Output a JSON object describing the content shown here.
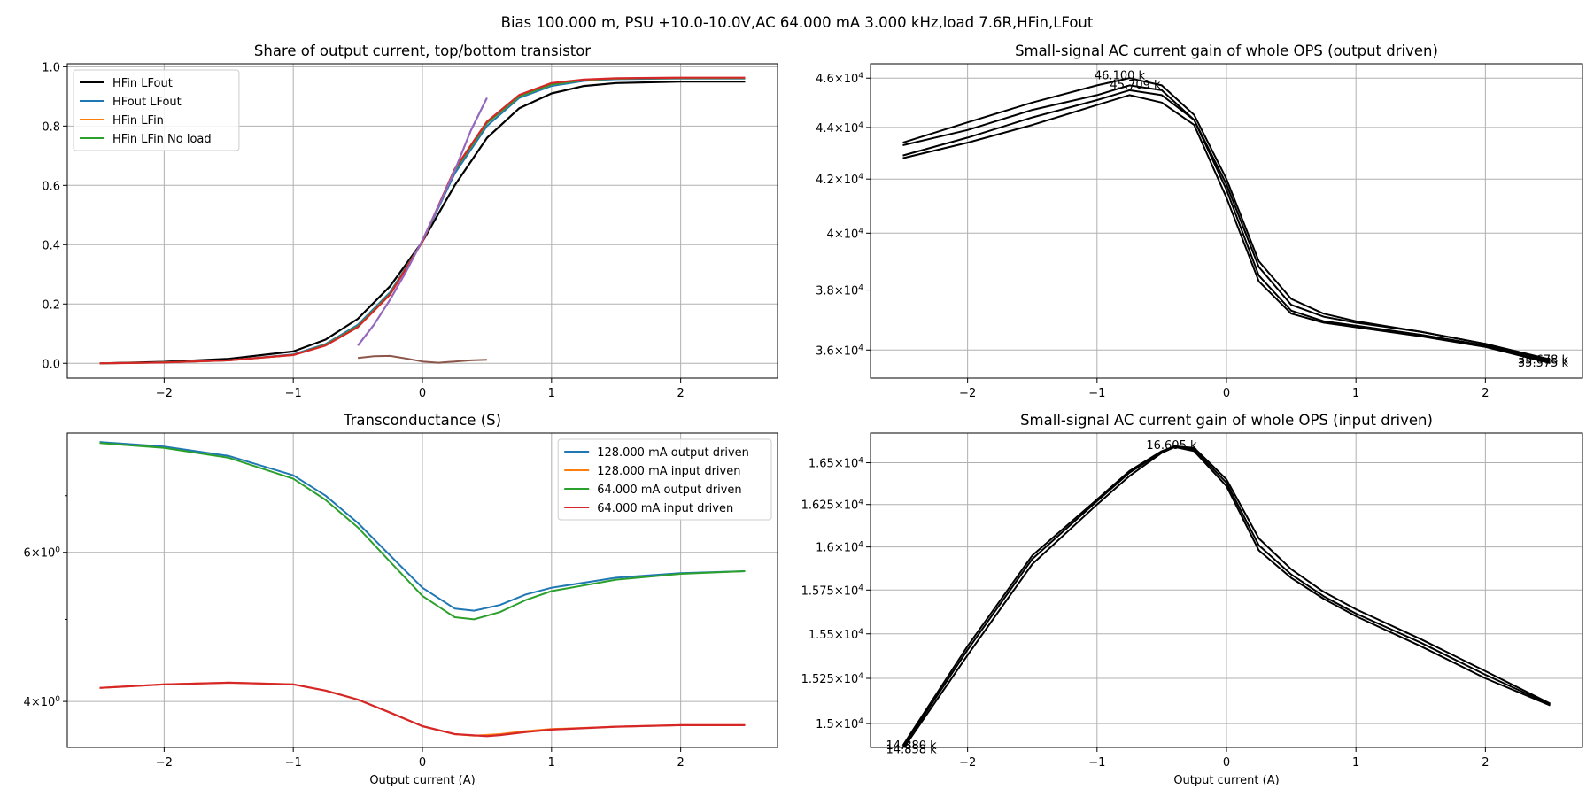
{
  "figure": {
    "suptitle": "Bias 100.000 m, PSU +10.0-10.0V,AC 64.000 mA 3.000 kHz,load 7.6R,HFin,LFout"
  },
  "colors": {
    "black": "#000000",
    "blue": "#1f77b4",
    "orange": "#ff7f0e",
    "green": "#2ca02c",
    "red": "#d62728",
    "purple": "#9467bd",
    "brown": "#8c564b",
    "grid": "#b0b0b0"
  },
  "chart_data": [
    {
      "id": "share",
      "type": "line",
      "title": "Share of output current, top/bottom transistor",
      "xlabel": "",
      "ylabel": "",
      "xlim": [
        -2.75,
        2.75
      ],
      "ylim": [
        -0.05,
        1.01
      ],
      "xticks": [
        -2,
        -1,
        0,
        1,
        2
      ],
      "xticklabels": [
        "−2",
        "−1",
        "0",
        "1",
        "2"
      ],
      "yticks": [
        0.0,
        0.2,
        0.4,
        0.6,
        0.8,
        1.0
      ],
      "yticklabels": [
        "0.0",
        "0.2",
        "0.4",
        "0.6",
        "0.8",
        "1.0"
      ],
      "grid": true,
      "legend": {
        "placement": "upper-left",
        "entries": [
          {
            "label": "HFin LFout",
            "color": "#000000"
          },
          {
            "label": "HFout LFout",
            "color": "#1f77b4"
          },
          {
            "label": "HFin LFin",
            "color": "#ff7f0e"
          },
          {
            "label": "HFin LFin No load",
            "color": "#2ca02c"
          }
        ]
      },
      "series": [
        {
          "name": "HFin LFout",
          "color": "#000000",
          "width": 2.2,
          "x": [
            -2.5,
            -2.0,
            -1.5,
            -1.0,
            -0.75,
            -0.5,
            -0.25,
            0.0,
            0.25,
            0.5,
            0.75,
            1.0,
            1.25,
            1.5,
            2.0,
            2.5
          ],
          "y": [
            0.0,
            0.005,
            0.015,
            0.04,
            0.08,
            0.15,
            0.26,
            0.41,
            0.6,
            0.76,
            0.86,
            0.91,
            0.935,
            0.945,
            0.95,
            0.95
          ]
        },
        {
          "name": "HFout LFout",
          "color": "#1f77b4",
          "width": 2.0,
          "x": [
            -2.5,
            -2.0,
            -1.5,
            -1.0,
            -0.75,
            -0.5,
            -0.25,
            0.0,
            0.25,
            0.5,
            0.75,
            1.0,
            1.25,
            1.5,
            2.0,
            2.5
          ],
          "y": [
            0.0,
            0.003,
            0.01,
            0.03,
            0.065,
            0.13,
            0.24,
            0.41,
            0.64,
            0.8,
            0.895,
            0.935,
            0.952,
            0.958,
            0.96,
            0.96
          ]
        },
        {
          "name": "HFin LFin",
          "color": "#ff7f0e",
          "width": 2.0,
          "x": [
            -2.5,
            -2.0,
            -1.5,
            -1.0,
            -0.75,
            -0.5,
            -0.25,
            0.0,
            0.25,
            0.5,
            0.75,
            1.0,
            1.25,
            1.5,
            2.0,
            2.5
          ],
          "y": [
            0.0,
            0.003,
            0.01,
            0.028,
            0.062,
            0.125,
            0.235,
            0.41,
            0.65,
            0.81,
            0.9,
            0.94,
            0.955,
            0.96,
            0.962,
            0.962
          ]
        },
        {
          "name": "HFin LFin No load",
          "color": "#2ca02c",
          "width": 2.0,
          "x": [
            -2.5,
            -2.0,
            -1.5,
            -1.0,
            -0.75,
            -0.5,
            -0.25,
            0.0,
            0.25,
            0.5,
            0.75,
            1.0,
            1.25,
            1.5,
            2.0,
            2.5
          ],
          "y": [
            0.0,
            0.003,
            0.01,
            0.028,
            0.062,
            0.125,
            0.235,
            0.41,
            0.65,
            0.81,
            0.9,
            0.94,
            0.955,
            0.96,
            0.962,
            0.962
          ]
        },
        {
          "name": "",
          "color": "#d62728",
          "width": 2.2,
          "x": [
            -2.5,
            -2.0,
            -1.5,
            -1.0,
            -0.75,
            -0.5,
            -0.25,
            0.0,
            0.25,
            0.5,
            0.75,
            1.0,
            1.25,
            1.5,
            2.0,
            2.5
          ],
          "y": [
            0.0,
            0.003,
            0.01,
            0.028,
            0.06,
            0.122,
            0.232,
            0.41,
            0.655,
            0.815,
            0.905,
            0.945,
            0.957,
            0.961,
            0.963,
            0.963
          ]
        },
        {
          "name": "",
          "color": "#9467bd",
          "width": 2.2,
          "x": [
            -0.5,
            -0.375,
            -0.25,
            -0.125,
            0.0,
            0.125,
            0.25,
            0.375,
            0.5
          ],
          "y": [
            0.06,
            0.13,
            0.215,
            0.31,
            0.415,
            0.53,
            0.65,
            0.785,
            0.895
          ]
        },
        {
          "name": "",
          "color": "#8c564b",
          "width": 2.0,
          "x": [
            -0.5,
            -0.375,
            -0.25,
            -0.125,
            0.0,
            0.125,
            0.25,
            0.375,
            0.5
          ],
          "y": [
            0.018,
            0.024,
            0.025,
            0.016,
            0.006,
            0.002,
            0.006,
            0.01,
            0.012
          ]
        }
      ]
    },
    {
      "id": "gain_out",
      "type": "line",
      "title": "Small-signal AC current gain of whole OPS (output driven)",
      "xlabel": "",
      "ylabel": "",
      "scale": "log",
      "xlim": [
        -2.75,
        2.75
      ],
      "ylim": [
        35100,
        46600
      ],
      "xticks": [
        -2,
        -1,
        0,
        1,
        2
      ],
      "xticklabels": [
        "−2",
        "−1",
        "0",
        "1",
        "2"
      ],
      "yticks": [
        36000,
        38000,
        40000,
        42000,
        44000,
        46000
      ],
      "yticklabels": [
        {
          "m": "3.6",
          "e": "4"
        },
        {
          "m": "3.8",
          "e": "4"
        },
        {
          "m": "4",
          "e": "4"
        },
        {
          "m": "4.2",
          "e": "4"
        },
        {
          "m": "4.4",
          "e": "4"
        },
        {
          "m": "4.6",
          "e": "4"
        }
      ],
      "grid": true,
      "annotations": [
        {
          "text": "46.100 k",
          "x": -1.02,
          "y": 46100
        },
        {
          "text": "45.709 k",
          "x": -0.9,
          "y": 45709
        },
        {
          "text": "35.678 k",
          "x": 2.25,
          "y": 35678
        },
        {
          "text": "35.575 k",
          "x": 2.25,
          "y": 35575
        }
      ],
      "series": [
        {
          "name": "",
          "color": "#000000",
          "width": 2.0,
          "x": [
            -2.5,
            -2.0,
            -1.5,
            -1.0,
            -0.75,
            -0.5,
            -0.25,
            0.0,
            0.25,
            0.5,
            0.75,
            1.0,
            1.5,
            2.0,
            2.5
          ],
          "y": [
            43400,
            44200,
            45000,
            45700,
            46000,
            45700,
            44500,
            42000,
            39000,
            37700,
            37200,
            36950,
            36600,
            36200,
            35700
          ]
        },
        {
          "name": "",
          "color": "#000000",
          "width": 2.0,
          "x": [
            -2.5,
            -2.0,
            -1.5,
            -1.0,
            -0.75,
            -0.5,
            -0.25,
            0.0,
            0.25,
            0.5,
            0.75,
            1.0,
            1.5,
            2.0,
            2.5
          ],
          "y": [
            43300,
            43900,
            44700,
            45300,
            45700,
            45500,
            44300,
            41800,
            38800,
            37500,
            37100,
            36900,
            36600,
            36200,
            35650
          ]
        },
        {
          "name": "",
          "color": "#000000",
          "width": 2.0,
          "x": [
            -2.5,
            -2.0,
            -1.5,
            -1.0,
            -0.75,
            -0.5,
            -0.25,
            0.0,
            0.25,
            0.5,
            0.75,
            1.0,
            1.5,
            2.0,
            2.5
          ],
          "y": [
            42900,
            43600,
            44400,
            45100,
            45500,
            45300,
            44300,
            41600,
            38500,
            37300,
            36950,
            36800,
            36500,
            36150,
            35600
          ]
        },
        {
          "name": "",
          "color": "#000000",
          "width": 2.0,
          "x": [
            -2.5,
            -2.0,
            -1.5,
            -1.0,
            -0.75,
            -0.5,
            -0.25,
            0.0,
            0.25,
            0.5,
            0.75,
            1.0,
            1.5,
            2.0,
            2.5
          ],
          "y": [
            42800,
            43400,
            44100,
            44900,
            45300,
            45000,
            44100,
            41300,
            38300,
            37200,
            36900,
            36750,
            36450,
            36100,
            35580
          ]
        }
      ]
    },
    {
      "id": "transconductance",
      "type": "line",
      "title": "Transconductance (S)",
      "xlabel": "Output current (A)",
      "ylabel": "",
      "scale": "log",
      "xlim": [
        -2.75,
        2.75
      ],
      "ylim": [
        3.53,
        8.3
      ],
      "xticks": [
        -2,
        -1,
        0,
        1,
        2
      ],
      "xticklabels": [
        "−2",
        "−1",
        "0",
        "1",
        "2"
      ],
      "yticks": [
        4,
        6
      ],
      "yticklabels": [
        {
          "m": "4",
          "e": "0"
        },
        {
          "m": "6",
          "e": "0"
        }
      ],
      "yminorticks": [
        5,
        7
      ],
      "grid": true,
      "legend": {
        "placement": "upper-right",
        "entries": [
          {
            "label": "128.000 mA output driven",
            "color": "#1f77b4"
          },
          {
            "label": "128.000 mA input driven",
            "color": "#ff7f0e"
          },
          {
            "label": "64.000 mA output driven",
            "color": "#2ca02c"
          },
          {
            "label": "64.000 mA input driven",
            "color": "#d62728"
          }
        ]
      },
      "series": [
        {
          "name": "128.000 mA output driven",
          "color": "#1f77b4",
          "width": 2.0,
          "x": [
            -2.5,
            -2.0,
            -1.5,
            -1.0,
            -0.75,
            -0.5,
            -0.25,
            0.0,
            0.25,
            0.4,
            0.6,
            0.8,
            1.0,
            1.5,
            2.0,
            2.5
          ],
          "y": [
            8.1,
            8.0,
            7.8,
            7.4,
            7.0,
            6.5,
            5.95,
            5.45,
            5.15,
            5.12,
            5.2,
            5.35,
            5.45,
            5.6,
            5.67,
            5.7
          ]
        },
        {
          "name": "128.000 mA input driven",
          "color": "#ff7f0e",
          "width": 2.0,
          "x": [
            -2.5,
            -2.0,
            -1.5,
            -1.0,
            -0.75,
            -0.5,
            -0.25,
            0.0,
            0.25,
            0.4,
            0.6,
            0.8,
            1.0,
            1.5,
            2.0,
            2.5
          ],
          "y": [
            4.15,
            4.19,
            4.21,
            4.19,
            4.12,
            4.02,
            3.88,
            3.74,
            3.66,
            3.645,
            3.66,
            3.69,
            3.71,
            3.735,
            3.75,
            3.75
          ]
        },
        {
          "name": "64.000 mA output driven",
          "color": "#2ca02c",
          "width": 2.0,
          "x": [
            -2.5,
            -2.0,
            -1.5,
            -1.0,
            -0.75,
            -0.5,
            -0.25,
            0.0,
            0.25,
            0.4,
            0.6,
            0.8,
            1.0,
            1.5,
            2.0,
            2.5
          ],
          "y": [
            8.08,
            7.97,
            7.76,
            7.33,
            6.92,
            6.42,
            5.85,
            5.33,
            5.03,
            5.0,
            5.1,
            5.27,
            5.4,
            5.57,
            5.66,
            5.7
          ]
        },
        {
          "name": "64.000 mA input driven",
          "color": "#d62728",
          "width": 2.2,
          "x": [
            -2.5,
            -2.0,
            -1.5,
            -1.0,
            -0.75,
            -0.5,
            -0.25,
            0.0,
            0.25,
            0.5,
            0.6,
            0.8,
            1.0,
            1.5,
            2.0,
            2.5
          ],
          "y": [
            4.15,
            4.19,
            4.21,
            4.19,
            4.12,
            4.02,
            3.88,
            3.74,
            3.66,
            3.64,
            3.65,
            3.68,
            3.705,
            3.735,
            3.75,
            3.75
          ]
        }
      ]
    },
    {
      "id": "gain_in",
      "type": "line",
      "title": "Small-signal AC current gain of whole OPS (input driven)",
      "xlabel": "Output current (A)",
      "ylabel": "",
      "scale": "log",
      "xlim": [
        -2.75,
        2.75
      ],
      "ylim": [
        14870,
        16680
      ],
      "xticks": [
        -2,
        -1,
        0,
        1,
        2
      ],
      "xticklabels": [
        "−2",
        "−1",
        "0",
        "1",
        "2"
      ],
      "yticks": [
        15000,
        15250,
        15500,
        15750,
        16000,
        16250,
        16500
      ],
      "yticklabels": [
        {
          "m": "1.5",
          "e": "4"
        },
        {
          "m": "1.525",
          "e": "4"
        },
        {
          "m": "1.55",
          "e": "4"
        },
        {
          "m": "1.575",
          "e": "4"
        },
        {
          "m": "1.6",
          "e": "4"
        },
        {
          "m": "1.625",
          "e": "4"
        },
        {
          "m": "1.65",
          "e": "4"
        }
      ],
      "grid": true,
      "annotations": [
        {
          "text": "16.605 k",
          "x": -0.62,
          "y": 16605
        },
        {
          "text": "14.880 k",
          "x": -2.63,
          "y": 14880
        },
        {
          "text": "14.858 k",
          "x": -2.63,
          "y": 14858
        }
      ],
      "series": [
        {
          "name": "",
          "color": "#000000",
          "width": 2.0,
          "x": [
            -2.5,
            -2.0,
            -1.5,
            -1.0,
            -0.75,
            -0.5,
            -0.4,
            -0.25,
            0.0,
            0.25,
            0.5,
            0.75,
            1.0,
            1.5,
            2.0,
            2.5
          ],
          "y": [
            14880,
            15430,
            15950,
            16280,
            16450,
            16570,
            16600,
            16590,
            16400,
            16050,
            15870,
            15740,
            15640,
            15470,
            15290,
            15110
          ]
        },
        {
          "name": "",
          "color": "#000000",
          "width": 2.0,
          "x": [
            -2.5,
            -2.0,
            -1.5,
            -1.0,
            -0.75,
            -0.5,
            -0.4,
            -0.25,
            0.0,
            0.25,
            0.5,
            0.75,
            1.0,
            1.5,
            2.0,
            2.5
          ],
          "y": [
            14860,
            15380,
            15900,
            16250,
            16420,
            16560,
            16595,
            16570,
            16360,
            15980,
            15820,
            15700,
            15600,
            15430,
            15250,
            15100
          ]
        },
        {
          "name": "",
          "color": "#000000",
          "width": 2.0,
          "x": [
            -2.5,
            -2.0,
            -1.5,
            -1.0,
            -0.75,
            -0.5,
            -0.4,
            -0.25,
            0.0,
            0.25,
            0.5,
            0.75,
            1.0,
            1.5,
            2.0,
            2.5
          ],
          "y": [
            14870,
            15410,
            15930,
            16270,
            16440,
            16565,
            16600,
            16580,
            16380,
            16010,
            15840,
            15715,
            15615,
            15450,
            15270,
            15105
          ]
        }
      ]
    }
  ]
}
